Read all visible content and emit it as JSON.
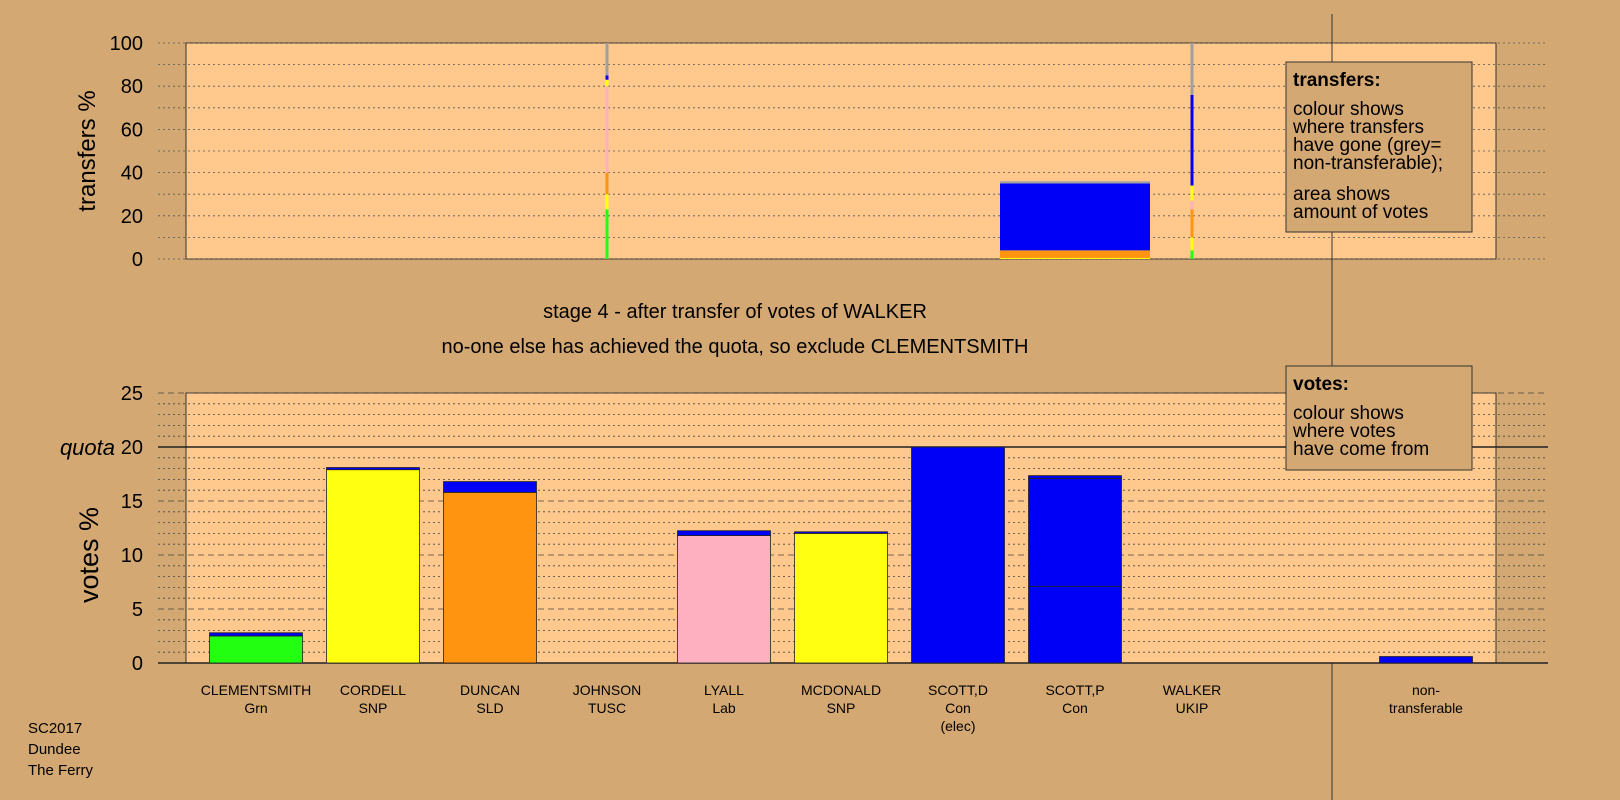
{
  "colors": {
    "page_background": "#d4a872",
    "plot_background": "#ffc98e",
    "legend_background": "#d4a872",
    "green": "#22ff11",
    "yellow": "#ffff11",
    "orange": "#ff9411",
    "pink": "#ffb0c0",
    "blue": "#0000f6",
    "grey": "#a0a0a0"
  },
  "stage_title": "stage 4 - after transfer of votes of WALKER",
  "stage_subtitle": "no-one else has achieved the quota, so exclude CLEMENTSMITH",
  "footer": [
    "SC2017",
    "Dundee",
    "The Ferry"
  ],
  "transfers_legend": {
    "heading": "transfers:",
    "lines1": [
      "colour shows",
      "where transfers",
      "have gone (grey=",
      "non-transferable);"
    ],
    "lines2": [
      "area shows",
      "amount of votes"
    ]
  },
  "votes_legend": {
    "heading": "votes:",
    "lines": [
      "colour shows",
      "where votes",
      "have come from"
    ]
  },
  "chart_data": [
    {
      "type": "bar",
      "ylabel": "transfers %",
      "ylim": [
        0,
        100
      ],
      "yticks": [
        0,
        20,
        40,
        60,
        80,
        100
      ],
      "grid": "dotted",
      "note": "stacked transfer bars (width proportional to amount of votes transferred)",
      "columns": [
        {
          "position": "JOHNSON",
          "segments": [
            {
              "color": "green",
              "value": 23
            },
            {
              "color": "yellow",
              "value": 7
            },
            {
              "color": "orange",
              "value": 10
            },
            {
              "color": "pink",
              "value": 40
            },
            {
              "color": "yellow",
              "value": 3
            },
            {
              "color": "blue",
              "value": 2
            },
            {
              "color": "grey",
              "value": 15
            }
          ]
        },
        {
          "position": "SCOTT,P",
          "segments": [
            {
              "color": "yellow",
              "value": 0.5
            },
            {
              "color": "orange",
              "value": 3.5
            },
            {
              "color": "blue",
              "value": 31
            },
            {
              "color": "grey",
              "value": 1
            }
          ]
        },
        {
          "position": "WALKER",
          "segments": [
            {
              "color": "green",
              "value": 4
            },
            {
              "color": "yellow",
              "value": 6
            },
            {
              "color": "orange",
              "value": 13
            },
            {
              "color": "pink",
              "value": 4
            },
            {
              "color": "yellow",
              "value": 7
            },
            {
              "color": "blue",
              "value": 42
            },
            {
              "color": "grey",
              "value": 24
            }
          ]
        }
      ]
    },
    {
      "type": "bar",
      "ylabel": "votes %",
      "ylim": [
        0,
        25
      ],
      "yticks": [
        0,
        5,
        10,
        15,
        20,
        25
      ],
      "quota": {
        "label": "quota",
        "value": 20
      },
      "grid": "dashed",
      "categories": [
        {
          "name": "CLEMENTSMITH",
          "party": "Grn",
          "extra": "",
          "segments": [
            {
              "color": "green",
              "value": 2.5
            },
            {
              "color": "blue",
              "value": 0.3
            }
          ]
        },
        {
          "name": "CORDELL",
          "party": "SNP",
          "extra": "",
          "segments": [
            {
              "color": "yellow",
              "value": 17.9
            },
            {
              "color": "blue",
              "value": 0.2
            }
          ]
        },
        {
          "name": "DUNCAN",
          "party": "SLD",
          "extra": "",
          "segments": [
            {
              "color": "orange",
              "value": 15.8
            },
            {
              "color": "blue",
              "value": 1.0
            }
          ]
        },
        {
          "name": "JOHNSON",
          "party": "TUSC",
          "extra": "",
          "segments": []
        },
        {
          "name": "LYALL",
          "party": "Lab",
          "extra": "",
          "segments": [
            {
              "color": "pink",
              "value": 11.8
            },
            {
              "color": "blue",
              "value": 0.45
            }
          ]
        },
        {
          "name": "MCDONALD",
          "party": "SNP",
          "extra": "",
          "segments": [
            {
              "color": "yellow",
              "value": 12.0
            },
            {
              "color": "blue",
              "value": 0.15
            }
          ]
        },
        {
          "name": "SCOTT,D",
          "party": "Con",
          "extra": "(elec)",
          "segments": [
            {
              "color": "blue",
              "value": 20.0
            }
          ]
        },
        {
          "name": "SCOTT,P",
          "party": "Con",
          "extra": "",
          "segments": [
            {
              "color": "blue",
              "value": 7.1
            },
            {
              "color": "blue",
              "value": 10.0
            },
            {
              "color": "blue",
              "value": 0.25
            }
          ]
        },
        {
          "name": "WALKER",
          "party": "UKIP",
          "extra": "",
          "segments": []
        },
        {
          "name": "non-transferable",
          "party": "",
          "extra": "",
          "segments": [
            {
              "color": "blue",
              "value": 0.6
            }
          ]
        }
      ]
    }
  ]
}
